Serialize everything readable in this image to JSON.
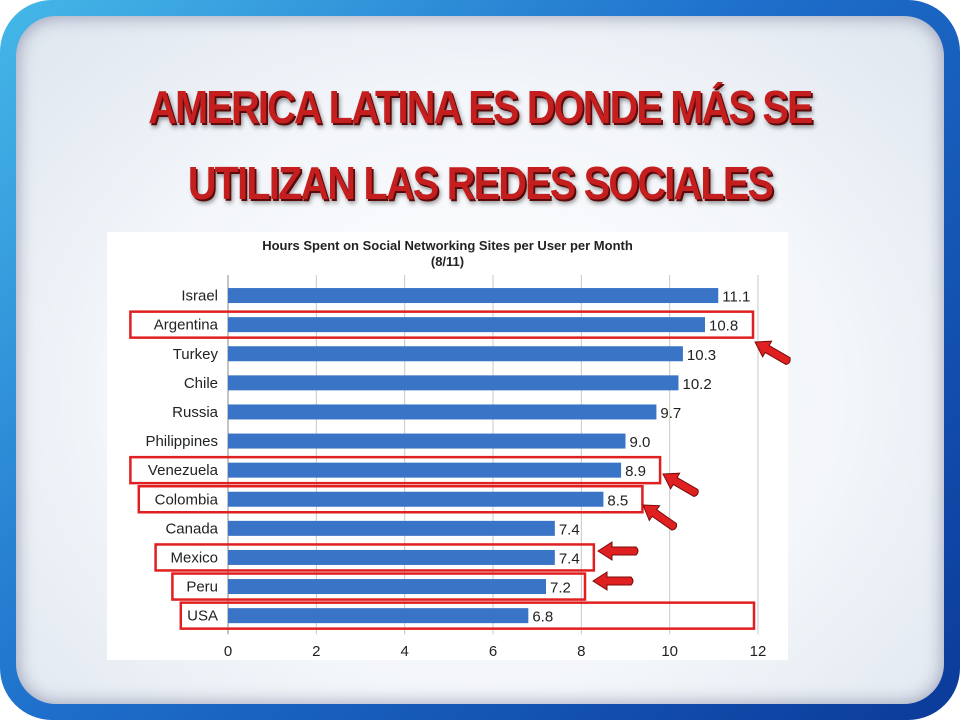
{
  "slide": {
    "title_line1": "AMERICA LATINA ES DONDE MÁS SE",
    "title_line2": "UTILIZAN LAS REDES SOCIALES"
  },
  "colors": {
    "bar": "#3a74c6",
    "highlight": "#e02020",
    "title": "#c41e1e"
  },
  "chart_data": {
    "type": "bar",
    "orientation": "horizontal",
    "title": "Hours Spent on Social Networking Sites per User per Month",
    "subtitle": "(8/11)",
    "categories": [
      "Israel",
      "Argentina",
      "Turkey",
      "Chile",
      "Russia",
      "Philippines",
      "Venezuela",
      "Colombia",
      "Canada",
      "Mexico",
      "Peru",
      "USA"
    ],
    "values": [
      11.1,
      10.8,
      10.3,
      10.2,
      9.7,
      9.0,
      8.9,
      8.5,
      7.4,
      7.4,
      7.2,
      6.8
    ],
    "value_labels": [
      "11.1",
      "10.8",
      "10.3",
      "10.2",
      "9.7",
      "9.0",
      "8.9",
      "8.5",
      "7.4",
      "7.4",
      "7.2",
      "6.8"
    ],
    "xlim": [
      0,
      12
    ],
    "xticks": [
      "0",
      "2",
      "4",
      "6",
      "8",
      "10",
      "12"
    ],
    "grid": "vertical",
    "highlighted": [
      "Argentina",
      "Venezuela",
      "Colombia",
      "Mexico",
      "Peru",
      "USA"
    ]
  }
}
